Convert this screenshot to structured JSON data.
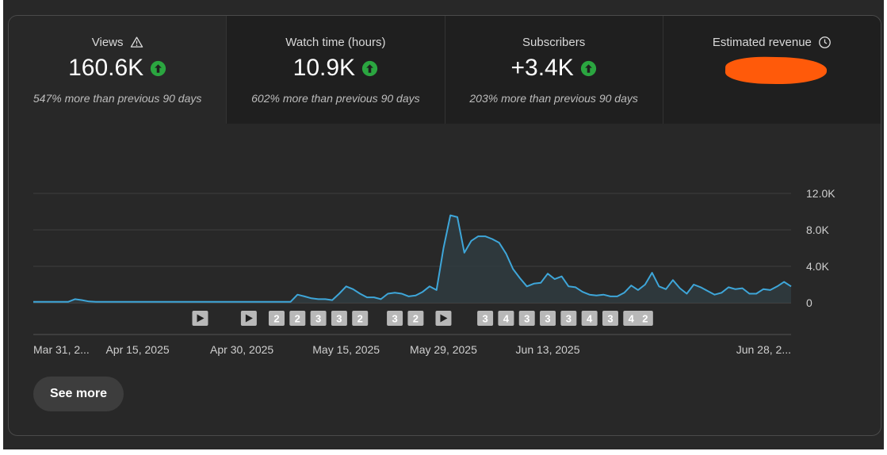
{
  "metrics": [
    {
      "label": "Views",
      "value": "160.6K",
      "note": "547% more than previous 90 days",
      "icon": "warning-icon"
    },
    {
      "label": "Watch time (hours)",
      "value": "10.9K",
      "note": "602% more than previous 90 days"
    },
    {
      "label": "Subscribers",
      "value": "+3.4K",
      "note": "203% more than previous 90 days"
    },
    {
      "label": "Estimated revenue",
      "value": "",
      "note": "",
      "icon": "clock-icon"
    }
  ],
  "colors": {
    "line": "#3ea6d9",
    "up": "#2ba640",
    "redaction": "#ff5a0a"
  },
  "see_more": "See more",
  "chart_data": {
    "type": "area",
    "title": "Views",
    "y_ticks": [
      "12.0K",
      "8.0K",
      "4.0K",
      "0"
    ],
    "y_tick_values": [
      12000,
      8000,
      4000,
      0
    ],
    "ylim": [
      0,
      12000
    ],
    "x_tick_labels": [
      "Mar 31, 2...",
      "Apr 15, 2025",
      "Apr 30, 2025",
      "May 15, 2025",
      "May 29, 2025",
      "Jun 13, 2025",
      "Jun 28, 2..."
    ],
    "x_tick_index": [
      0,
      15,
      30,
      45,
      59,
      74,
      89
    ],
    "values": [
      100,
      100,
      100,
      100,
      100,
      100,
      400,
      300,
      150,
      100,
      100,
      100,
      100,
      100,
      100,
      100,
      100,
      100,
      100,
      100,
      100,
      100,
      100,
      100,
      100,
      100,
      100,
      100,
      100,
      100,
      100,
      100,
      100,
      100,
      100,
      100,
      100,
      100,
      900,
      700,
      500,
      400,
      400,
      300,
      1000,
      1800,
      1500,
      1000,
      600,
      600,
      400,
      1000,
      1100,
      1000,
      700,
      800,
      1200,
      1800,
      1400,
      6000,
      9600,
      9400,
      5500,
      6800,
      7300,
      7300,
      7000,
      6600,
      5400,
      3700,
      2700,
      1800,
      2100,
      2200,
      3200,
      2600,
      2900,
      1800,
      1700,
      1200,
      900,
      800,
      900,
      700,
      700,
      1100,
      1900,
      1400,
      2000,
      3300,
      1800,
      1500,
      2500,
      1600,
      1000,
      2000,
      1700,
      1300,
      900,
      1100,
      1700,
      1500,
      1600,
      1000,
      1000,
      1500,
      1400,
      1800,
      2300,
      1800
    ],
    "markers": [
      {
        "index": 24,
        "label": "",
        "kind": "play"
      },
      {
        "index": 31,
        "label": "",
        "kind": "play"
      },
      {
        "index": 35,
        "label": "2"
      },
      {
        "index": 38,
        "label": "2"
      },
      {
        "index": 41,
        "label": "3"
      },
      {
        "index": 44,
        "label": "3"
      },
      {
        "index": 47,
        "label": "2"
      },
      {
        "index": 52,
        "label": "3"
      },
      {
        "index": 55,
        "label": "2"
      },
      {
        "index": 59,
        "label": "",
        "kind": "play"
      },
      {
        "index": 65,
        "label": "3"
      },
      {
        "index": 68,
        "label": "4"
      },
      {
        "index": 71,
        "label": "3"
      },
      {
        "index": 74,
        "label": "3"
      },
      {
        "index": 77,
        "label": "3"
      },
      {
        "index": 80,
        "label": "4"
      },
      {
        "index": 83,
        "label": "3"
      },
      {
        "index": 86,
        "label": "4"
      },
      {
        "index": 88,
        "label": "2"
      }
    ]
  }
}
